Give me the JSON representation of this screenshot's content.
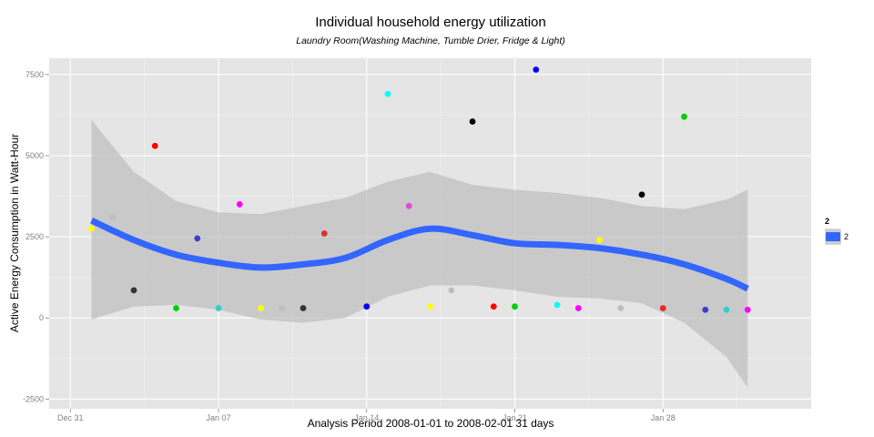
{
  "chart_data": {
    "type": "scatter",
    "title": "Individual household energy utilization",
    "subtitle": "Laundry Room(Washing Machine, Tumble Drier, Fridge & Light)",
    "xlabel": "Analysis Period  2008-01-01  to  2008-02-01   31 days",
    "ylabel": "Active Energy Consumption in Watt-Hour",
    "xlim": [
      "2007-12-30",
      "2008-02-04"
    ],
    "ylim": [
      -2800,
      8000
    ],
    "x_ticks": [
      "Dec 31",
      "Jan 07",
      "Jan 14",
      "Jan 21",
      "Jan 28"
    ],
    "x_tick_dates": [
      "2007-12-31",
      "2008-01-07",
      "2008-01-14",
      "2008-01-21",
      "2008-01-28"
    ],
    "y_ticks": [
      -2500,
      0,
      2500,
      5000,
      7500
    ],
    "grid": true,
    "legend": {
      "title": "2",
      "label": "2",
      "position": "right",
      "color": "#3366FF"
    },
    "points": [
      {
        "x": "2008-01-01",
        "y": 2750,
        "color": "#FFFF00"
      },
      {
        "x": "2008-01-02",
        "y": 3100,
        "color": "#BEBEBE"
      },
      {
        "x": "2008-01-03",
        "y": 850,
        "color": "#333333"
      },
      {
        "x": "2008-01-04",
        "y": 5300,
        "color": "#FF0000"
      },
      {
        "x": "2008-01-05",
        "y": 300,
        "color": "#00CD00"
      },
      {
        "x": "2008-01-06",
        "y": 2450,
        "color": "#3D3DCF"
      },
      {
        "x": "2008-01-07",
        "y": 300,
        "color": "#33CCCC"
      },
      {
        "x": "2008-01-08",
        "y": 3500,
        "color": "#FF00FF"
      },
      {
        "x": "2008-01-09",
        "y": 300,
        "color": "#FFFF00"
      },
      {
        "x": "2008-01-10",
        "y": 300,
        "color": "#BEBEBE"
      },
      {
        "x": "2008-01-11",
        "y": 300,
        "color": "#333333"
      },
      {
        "x": "2008-01-12",
        "y": 2600,
        "color": "#E0302A"
      },
      {
        "x": "2008-01-14",
        "y": 350,
        "color": "#0000FF"
      },
      {
        "x": "2008-01-15",
        "y": 6900,
        "color": "#00FFFF"
      },
      {
        "x": "2008-01-16",
        "y": 3450,
        "color": "#D94DD9"
      },
      {
        "x": "2008-01-17",
        "y": 350,
        "color": "#FFFF00"
      },
      {
        "x": "2008-01-18",
        "y": 850,
        "color": "#BEBEBE"
      },
      {
        "x": "2008-01-19",
        "y": 6050,
        "color": "#000000"
      },
      {
        "x": "2008-01-20",
        "y": 350,
        "color": "#FF0000"
      },
      {
        "x": "2008-01-21",
        "y": 350,
        "color": "#00CD00"
      },
      {
        "x": "2008-01-22",
        "y": 7650,
        "color": "#0000FF"
      },
      {
        "x": "2008-01-23",
        "y": 400,
        "color": "#00FFFF"
      },
      {
        "x": "2008-01-24",
        "y": 300,
        "color": "#FF00FF"
      },
      {
        "x": "2008-01-25",
        "y": 2400,
        "color": "#FFFF00"
      },
      {
        "x": "2008-01-26",
        "y": 300,
        "color": "#BEBEBE"
      },
      {
        "x": "2008-01-27",
        "y": 3800,
        "color": "#000000"
      },
      {
        "x": "2008-01-28",
        "y": 300,
        "color": "#E0302A"
      },
      {
        "x": "2008-01-29",
        "y": 6200,
        "color": "#00CD00"
      },
      {
        "x": "2008-01-30",
        "y": 250,
        "color": "#3D3DCF"
      },
      {
        "x": "2008-01-31",
        "y": 250,
        "color": "#33CCCC"
      },
      {
        "x": "2008-02-01",
        "y": 250,
        "color": "#FF00FF"
      }
    ],
    "smooth": {
      "color": "#3366FF",
      "band_color": "#BEBEBE",
      "x": [
        "2008-01-01",
        "2008-01-03",
        "2008-01-05",
        "2008-01-07",
        "2008-01-09",
        "2008-01-11",
        "2008-01-13",
        "2008-01-15",
        "2008-01-17",
        "2008-01-19",
        "2008-01-21",
        "2008-01-23",
        "2008-01-25",
        "2008-01-27",
        "2008-01-29",
        "2008-01-31",
        "2008-02-01"
      ],
      "y": [
        3000,
        2400,
        1950,
        1700,
        1550,
        1650,
        1850,
        2400,
        2750,
        2550,
        2300,
        2250,
        2150,
        1950,
        1650,
        1200,
        900
      ],
      "upper": [
        6100,
        4500,
        3600,
        3250,
        3200,
        3450,
        3700,
        4200,
        4500,
        4100,
        3950,
        3850,
        3700,
        3450,
        3350,
        3650,
        3950
      ],
      "lower": [
        -50,
        350,
        400,
        250,
        -50,
        -150,
        0,
        650,
        1000,
        1000,
        850,
        650,
        600,
        450,
        -150,
        -1200,
        -2150
      ]
    }
  }
}
